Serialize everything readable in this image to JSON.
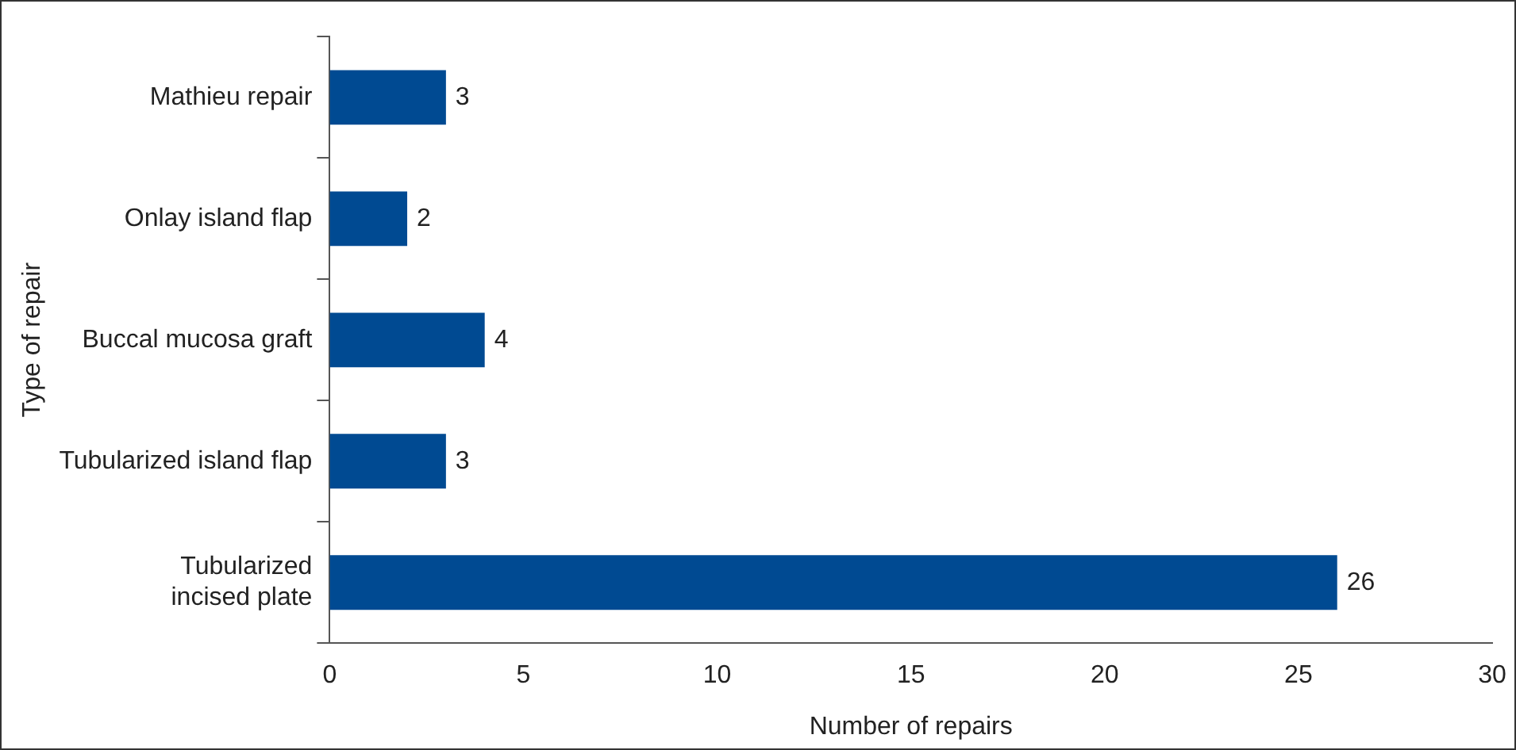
{
  "chart_data": {
    "type": "bar",
    "orientation": "horizontal",
    "xlabel": "Number of repairs",
    "ylabel": "Type of repair",
    "categories": [
      "Mathieu repair",
      "Onlay island flap",
      "Buccal mucosa graft",
      "Tubularized island flap",
      "Tubularized incised plate"
    ],
    "values": [
      3,
      2,
      4,
      3,
      26
    ],
    "color": "#004a92",
    "xlim": [
      0,
      30
    ],
    "xticks": [
      0,
      5,
      10,
      15,
      20,
      25,
      30
    ],
    "grid": false,
    "legend": false,
    "data_labels": true
  }
}
